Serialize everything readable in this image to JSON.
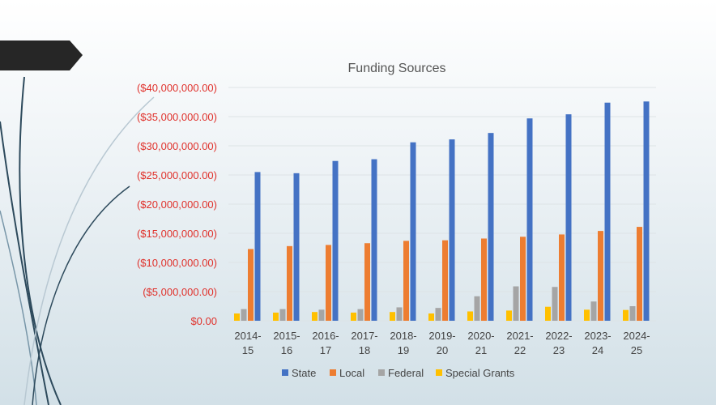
{
  "chart_data": {
    "type": "bar",
    "title": "Funding Sources",
    "xlabel": "",
    "ylabel": "",
    "ylim": [
      0,
      40000000
    ],
    "yticks": [
      "$0.00",
      "($5,000,000.00)",
      "($10,000,000.00)",
      "($15,000,000.00)",
      "($20,000,000.00)",
      "($25,000,000.00)",
      "($30,000,000.00)",
      "($35,000,000.00)",
      "($40,000,000.00)"
    ],
    "categories": [
      [
        "2014-",
        "15"
      ],
      [
        "2015-",
        "16"
      ],
      [
        "2016-",
        "17"
      ],
      [
        "2017-",
        "18"
      ],
      [
        "2018-",
        "19"
      ],
      [
        "2019-",
        "20"
      ],
      [
        "2020-",
        "21"
      ],
      [
        "2021-",
        "22"
      ],
      [
        "2022-",
        "23"
      ],
      [
        "2023-",
        "24"
      ],
      [
        "2024-",
        "25"
      ]
    ],
    "grid": true,
    "legend_position": "bottom",
    "series": [
      {
        "name": "State",
        "color": "#4472c4",
        "values": [
          25500000,
          25300000,
          27400000,
          27700000,
          30600000,
          31100000,
          32200000,
          34700000,
          35400000,
          37400000,
          37600000
        ]
      },
      {
        "name": "Local",
        "color": "#ed7d31",
        "values": [
          12300000,
          12800000,
          13000000,
          13300000,
          13700000,
          13800000,
          14100000,
          14400000,
          14800000,
          15400000,
          16100000
        ]
      },
      {
        "name": "Federal",
        "color": "#a5a5a5",
        "values": [
          2000000,
          2000000,
          1900000,
          2000000,
          2300000,
          2200000,
          4200000,
          5900000,
          5800000,
          3300000,
          2500000
        ]
      },
      {
        "name": "Special Grants",
        "color": "#ffc000",
        "values": [
          1250000,
          1400000,
          1500000,
          1400000,
          1500000,
          1250000,
          1600000,
          1750000,
          2400000,
          1900000,
          1850000
        ]
      }
    ],
    "bar_order_left_to_right": [
      "Special Grants",
      "Federal",
      "Local",
      "State"
    ]
  }
}
